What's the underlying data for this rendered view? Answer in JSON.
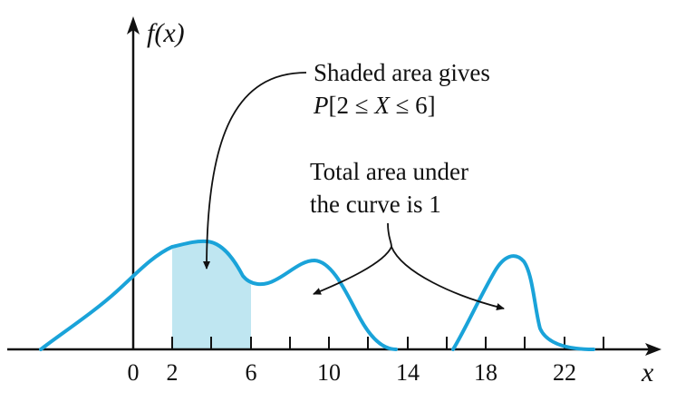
{
  "annotations": {
    "shaded_line1": "Shaded area gives",
    "shaded_line2_prefix": "P",
    "shaded_line2_rest": "[2 ≤ X ≤ 6]",
    "total_line1": "Total area under",
    "total_line2": "the curve is 1"
  },
  "axes": {
    "y_label": "f(x)",
    "x_label": "x",
    "x_tick_labels": [
      "0",
      "2",
      "6",
      "10",
      "14",
      "18",
      "22"
    ]
  },
  "colors": {
    "curve": "#1aa3d9",
    "shade": "#bfe6f1",
    "ink": "#111111"
  }
}
